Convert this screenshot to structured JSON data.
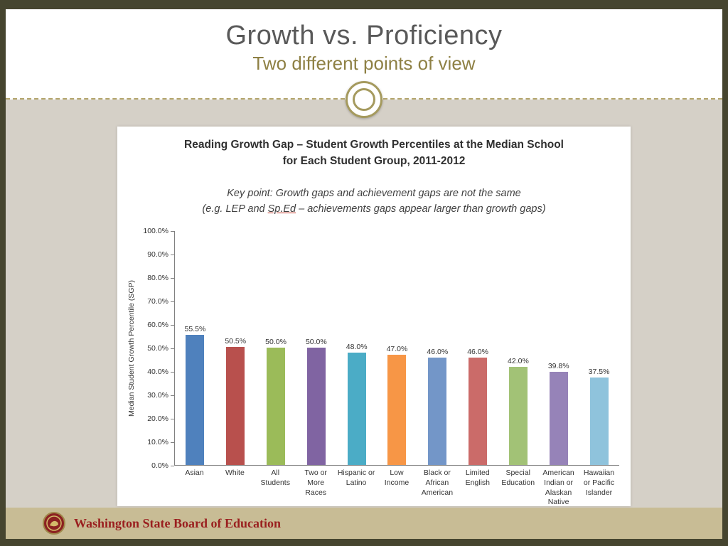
{
  "slide": {
    "title": "Growth vs. Proficiency",
    "subtitle": "Two different points of view"
  },
  "footer": {
    "org": "Washington State Board of Education"
  },
  "chart_data": {
    "type": "bar",
    "title_line1": "Reading Growth Gap – Student Growth Percentiles at the Median School",
    "title_line2": "for Each Student Group, 2011-2012",
    "keypoint_line1": "Key point: Growth gaps and achievement gaps are not the same",
    "keypoint_line2_pre": "(e.g. LEP and ",
    "keypoint_underlined": "Sp.Ed",
    "keypoint_line2_post": " – achievements gaps appear larger than growth gaps)",
    "ylabel": "Median Student Growth Percentile (SGP)",
    "ylim": [
      0,
      100
    ],
    "ytick_step": 10,
    "ytick_labels": [
      "100.0%",
      "90.0%",
      "80.0%",
      "70.0%",
      "60.0%",
      "50.0%",
      "40.0%",
      "30.0%",
      "20.0%",
      "10.0%",
      "0.0%"
    ],
    "categories": [
      "Asian",
      "White",
      "All Students",
      "Two or More Races",
      "Hispanic or Latino",
      "Low Income",
      "Black or African American",
      "Limited English",
      "Special Education",
      "American Indian or Alaskan Native",
      "Hawaiian or Pacific Islander"
    ],
    "values": [
      55.5,
      50.5,
      50.0,
      50.0,
      48.0,
      47.0,
      46.0,
      46.0,
      42.0,
      39.8,
      37.5
    ],
    "value_labels": [
      "55.5%",
      "50.5%",
      "50.0%",
      "50.0%",
      "48.0%",
      "47.0%",
      "46.0%",
      "46.0%",
      "42.0%",
      "39.8%",
      "37.5%"
    ],
    "bar_colors": [
      "#4f81bd",
      "#b8504d",
      "#9bbb59",
      "#8064a2",
      "#4bacc6",
      "#f79646",
      "#7396c8",
      "#cb6b69",
      "#a2c276",
      "#9683b8",
      "#8fc3dc"
    ],
    "grid": false,
    "legend": "none"
  },
  "colors": {
    "frame": "#46452f",
    "content_bg": "#d5d0c7",
    "footer_bg": "#c8bc95",
    "title_text": "#595959",
    "subtitle_text": "#8e8044",
    "footer_text": "#9a1f1f",
    "divider_gold": "#b3a46b"
  }
}
